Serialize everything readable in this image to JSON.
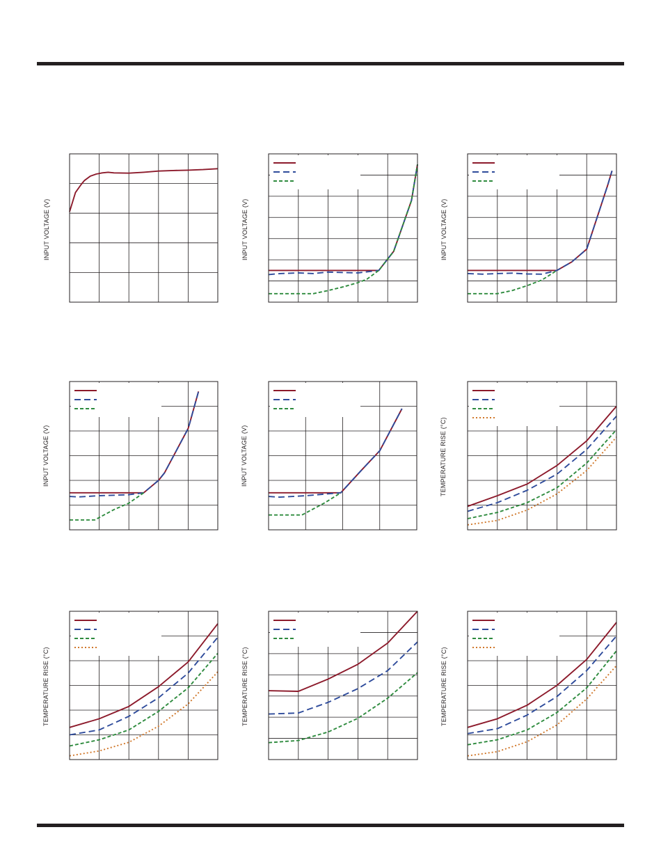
{
  "colors": {
    "frame": "#231f20",
    "grid": "#231f20",
    "series": [
      "#8c1a2b",
      "#2e4b9b",
      "#2e8b3e",
      "#d0772a"
    ]
  },
  "chart_data": [
    {
      "type": "line",
      "ylabel": "INPUT VOLTAGE (V)",
      "xlim": [
        0,
        5
      ],
      "ylim": [
        0,
        5
      ],
      "xgrid": 5,
      "ygrid": 5,
      "series": [
        {
          "dash": "solid",
          "x": [
            0,
            0.2,
            0.4,
            0.5,
            0.7,
            0.9,
            1.1,
            1.3,
            1.5,
            2.0,
            2.5,
            3.0,
            3.5,
            4.0,
            4.5,
            5.0
          ],
          "y": [
            3.05,
            3.7,
            3.98,
            4.1,
            4.25,
            4.32,
            4.36,
            4.38,
            4.36,
            4.35,
            4.38,
            4.42,
            4.44,
            4.45,
            4.47,
            4.5
          ]
        }
      ]
    },
    {
      "type": "line",
      "ylabel": "INPUT VOLTAGE (V)",
      "xlim": [
        0,
        5
      ],
      "ylim": [
        0,
        7
      ],
      "xgrid": 5,
      "ygrid": 7,
      "legend_rows": 3,
      "series": [
        {
          "dash": "solid",
          "x": [
            0,
            1,
            2,
            3,
            3.7,
            4.2,
            4.8,
            5.0
          ],
          "y": [
            1.5,
            1.5,
            1.5,
            1.5,
            1.5,
            2.4,
            4.8,
            6.5
          ]
        },
        {
          "dash": "long",
          "x": [
            0,
            0.4,
            1,
            1.5,
            2,
            3,
            3.7,
            4.2,
            4.8,
            5.0
          ],
          "y": [
            1.3,
            1.35,
            1.38,
            1.35,
            1.42,
            1.38,
            1.5,
            2.4,
            4.8,
            6.5
          ]
        },
        {
          "dash": "short",
          "x": [
            0,
            1.5,
            2,
            2.5,
            3,
            3.3,
            3.7,
            4.2,
            4.8,
            5.0
          ],
          "y": [
            0.4,
            0.4,
            0.55,
            0.72,
            0.92,
            1.08,
            1.5,
            2.4,
            4.8,
            6.5
          ]
        }
      ]
    },
    {
      "type": "line",
      "ylabel": "INPUT VOLTAGE (V)",
      "xlim": [
        0,
        5
      ],
      "ylim": [
        0,
        7
      ],
      "xgrid": 5,
      "ygrid": 7,
      "legend_rows": 3,
      "series": [
        {
          "dash": "solid",
          "x": [
            0,
            1,
            2,
            3,
            3.5,
            4.0,
            4.7,
            4.85
          ],
          "y": [
            1.5,
            1.5,
            1.5,
            1.5,
            1.9,
            2.5,
            5.5,
            6.2
          ]
        },
        {
          "dash": "long",
          "x": [
            0,
            0.5,
            1,
            1.5,
            2,
            2.5,
            3,
            3.5,
            4.0,
            4.7,
            4.85
          ],
          "y": [
            1.35,
            1.32,
            1.35,
            1.37,
            1.33,
            1.32,
            1.5,
            1.9,
            2.5,
            5.5,
            6.2
          ]
        },
        {
          "dash": "short",
          "x": [
            0,
            1,
            1.5,
            2,
            2.5,
            3
          ],
          "y": [
            0.4,
            0.4,
            0.55,
            0.78,
            1.05,
            1.5
          ]
        }
      ]
    },
    {
      "type": "line",
      "ylabel": "INPUT VOLTAGE (V)",
      "xlim": [
        0,
        5
      ],
      "ylim": [
        0,
        6
      ],
      "xgrid": 5,
      "ygrid": 6,
      "legend_rows": 3,
      "series": [
        {
          "dash": "solid",
          "x": [
            0,
            1,
            2,
            2.5,
            3,
            3.2,
            4,
            4.05,
            4.35
          ],
          "y": [
            1.5,
            1.5,
            1.5,
            1.5,
            2.0,
            2.3,
            4.1,
            4.3,
            5.6
          ]
        },
        {
          "dash": "long",
          "x": [
            0,
            0.3,
            1,
            2,
            2.5,
            3,
            3.2,
            4,
            4.05,
            4.35
          ],
          "y": [
            1.35,
            1.33,
            1.38,
            1.42,
            1.5,
            2.0,
            2.3,
            4.1,
            4.3,
            5.6
          ]
        },
        {
          "dash": "short",
          "x": [
            0,
            0.85,
            1.5,
            2,
            2.5
          ],
          "y": [
            0.4,
            0.4,
            0.82,
            1.08,
            1.5
          ]
        }
      ]
    },
    {
      "type": "line",
      "ylabel": "INPUT VOLTAGE (V)",
      "xlim": [
        0,
        4
      ],
      "ylim": [
        0,
        6
      ],
      "xgrid": 4,
      "ygrid": 6,
      "legend_rows": 3,
      "series": [
        {
          "dash": "solid",
          "x": [
            0,
            1,
            1.95,
            2.5,
            3,
            3.6
          ],
          "y": [
            1.5,
            1.5,
            1.5,
            2.4,
            3.2,
            4.9
          ]
        },
        {
          "dash": "long",
          "x": [
            0,
            0.3,
            1,
            1.95,
            2.5,
            3,
            3.6
          ],
          "y": [
            1.35,
            1.32,
            1.38,
            1.5,
            2.4,
            3.2,
            4.9
          ]
        },
        {
          "dash": "short",
          "x": [
            0,
            0.9,
            1.5,
            1.95
          ],
          "y": [
            0.6,
            0.6,
            1.08,
            1.5
          ]
        }
      ]
    },
    {
      "type": "line",
      "ylabel": "TEMPERATURE RISE (°C)",
      "xlim": [
        0,
        5
      ],
      "ylim": [
        0,
        6
      ],
      "xgrid": 5,
      "ygrid": 6,
      "legend_rows": 4,
      "series": [
        {
          "dash": "solid",
          "x": [
            0,
            1,
            2,
            3,
            4,
            5
          ],
          "y": [
            0.95,
            1.38,
            1.85,
            2.6,
            3.6,
            5.0
          ]
        },
        {
          "dash": "long",
          "x": [
            0,
            1,
            2,
            3,
            4,
            5
          ],
          "y": [
            0.75,
            1.1,
            1.6,
            2.25,
            3.25,
            4.6
          ]
        },
        {
          "dash": "short",
          "x": [
            0,
            1,
            2,
            3,
            4,
            5
          ],
          "y": [
            0.45,
            0.7,
            1.1,
            1.7,
            2.7,
            4.05
          ]
        },
        {
          "dash": "dot",
          "x": [
            0,
            1,
            2,
            3,
            4,
            5
          ],
          "y": [
            0.2,
            0.38,
            0.8,
            1.45,
            2.4,
            3.75
          ]
        }
      ]
    },
    {
      "type": "line",
      "ylabel": "TEMPERATURE RISE (°C)",
      "xlim": [
        0,
        5
      ],
      "ylim": [
        0,
        6
      ],
      "xgrid": 5,
      "ygrid": 6,
      "legend_rows": 4,
      "series": [
        {
          "dash": "solid",
          "x": [
            0,
            1,
            2,
            3,
            4,
            5
          ],
          "y": [
            1.3,
            1.65,
            2.15,
            2.95,
            3.95,
            5.5
          ]
        },
        {
          "dash": "long",
          "x": [
            0,
            1,
            2,
            3,
            4,
            5
          ],
          "y": [
            1.0,
            1.2,
            1.75,
            2.5,
            3.5,
            4.95
          ]
        },
        {
          "dash": "short",
          "x": [
            0,
            1,
            2,
            3,
            4,
            5
          ],
          "y": [
            0.55,
            0.8,
            1.2,
            1.95,
            2.9,
            4.3
          ]
        },
        {
          "dash": "dot",
          "x": [
            0,
            1,
            2,
            3,
            4,
            5
          ],
          "y": [
            0.15,
            0.35,
            0.7,
            1.35,
            2.25,
            3.55
          ]
        }
      ]
    },
    {
      "type": "line",
      "ylabel": "TEMPERATURE RISE (°C)",
      "xlim": [
        0,
        5
      ],
      "ylim": [
        0,
        7
      ],
      "xgrid": 5,
      "ygrid": 7,
      "legend_rows": 3,
      "series": [
        {
          "dash": "solid",
          "x": [
            0,
            1,
            2,
            3,
            4,
            5
          ],
          "y": [
            3.25,
            3.22,
            3.8,
            4.5,
            5.5,
            7.0
          ]
        },
        {
          "dash": "long",
          "x": [
            0,
            1,
            2,
            3,
            4,
            5
          ],
          "y": [
            2.15,
            2.2,
            2.7,
            3.35,
            4.2,
            5.55
          ]
        },
        {
          "dash": "short",
          "x": [
            0,
            1,
            2,
            3,
            4,
            5
          ],
          "y": [
            0.8,
            0.9,
            1.3,
            1.95,
            2.9,
            4.1
          ]
        }
      ]
    },
    {
      "type": "line",
      "ylabel": "TEMPERATURE RISE (°C)",
      "xlim": [
        0,
        5
      ],
      "ylim": [
        0,
        6
      ],
      "xgrid": 5,
      "ygrid": 6,
      "legend_rows": 4,
      "series": [
        {
          "dash": "solid",
          "x": [
            0,
            1,
            2,
            3,
            4,
            5
          ],
          "y": [
            1.3,
            1.65,
            2.2,
            3.0,
            4.05,
            5.55
          ]
        },
        {
          "dash": "long",
          "x": [
            0,
            1,
            2,
            3,
            4,
            5
          ],
          "y": [
            1.05,
            1.25,
            1.8,
            2.55,
            3.6,
            5.0
          ]
        },
        {
          "dash": "short",
          "x": [
            0,
            1,
            2,
            3,
            4,
            5
          ],
          "y": [
            0.6,
            0.8,
            1.2,
            1.9,
            2.9,
            4.4
          ]
        },
        {
          "dash": "dot",
          "x": [
            0,
            1,
            2,
            3,
            4,
            5
          ],
          "y": [
            0.15,
            0.32,
            0.72,
            1.4,
            2.45,
            3.8
          ]
        }
      ]
    }
  ]
}
